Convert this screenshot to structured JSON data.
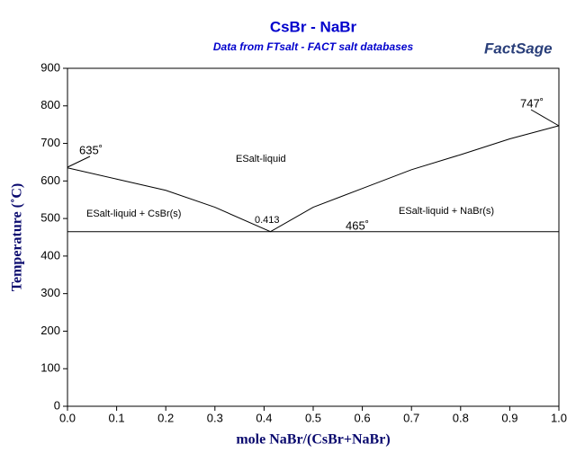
{
  "chart_data": {
    "type": "line",
    "title": "CsBr - NaBr",
    "subtitle": "Data from FTsalt - FACT salt databases",
    "logo": "FactSage",
    "x_label": "mole NaBr/(CsBr+NaBr)",
    "y_label": "Temperature (˚C)",
    "xlim": [
      0,
      1
    ],
    "ylim": [
      0,
      900
    ],
    "xticks": [
      {
        "value": 0,
        "label": "0.0"
      },
      0.1,
      0.2,
      0.3,
      0.4,
      0.5,
      0.6,
      0.7,
      0.8,
      0.9,
      {
        "value": 1,
        "label": "1.0"
      }
    ],
    "yticks": [
      0,
      100,
      200,
      300,
      400,
      500,
      600,
      700,
      800,
      900
    ],
    "series": [
      {
        "color": "#000000",
        "x": [
          0,
          0.1,
          0.2,
          0.3,
          0.413,
          0.5,
          0.6,
          0.7,
          0.8,
          0.9,
          1
        ],
        "values": [
          635,
          605,
          575,
          530,
          465,
          530,
          580,
          630,
          670,
          712,
          747
        ]
      },
      {
        "color": "#000000",
        "x": [
          0,
          1
        ],
        "values": [
          465,
          465
        ]
      }
    ],
    "annotations": [
      "635˚",
      "747˚",
      "465˚",
      "0.413",
      "ESalt-liquid",
      "ESalt-liquid + CsBr(s)",
      "ESalt-liquid + NaBr(s)"
    ]
  }
}
